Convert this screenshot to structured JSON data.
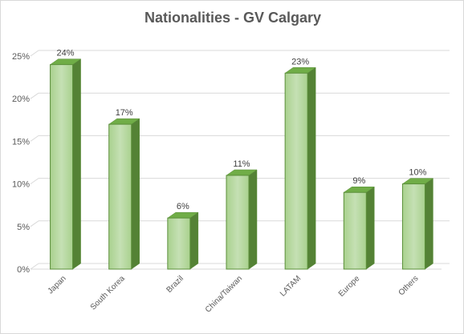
{
  "chart_data": {
    "type": "bar",
    "title": "Nationalities - GV Calgary",
    "categories": [
      "Japan",
      "South Korea",
      "Brazil",
      "China/Taiwan",
      "LATAM",
      "Europe",
      "Others"
    ],
    "values": [
      24,
      17,
      6,
      11,
      23,
      9,
      10
    ],
    "data_labels": [
      "24%",
      "17%",
      "6%",
      "11%",
      "23%",
      "9%",
      "10%"
    ],
    "y_ticks": [
      0,
      5,
      10,
      15,
      20,
      25
    ],
    "y_tick_labels": [
      "0%",
      "5%",
      "10%",
      "15%",
      "20%",
      "25%"
    ],
    "ylim": [
      0,
      25
    ],
    "xlabel": "",
    "ylabel": "",
    "grid": true,
    "legend": "none",
    "colors": {
      "bar_front": "#a9d18e",
      "bar_front_light": "#c5e0b4",
      "bar_side": "#548235",
      "bar_top": "#70ad47",
      "bar_edge": "#5b8f3a",
      "grid": "#d9d9d9",
      "text": "#595959"
    }
  }
}
